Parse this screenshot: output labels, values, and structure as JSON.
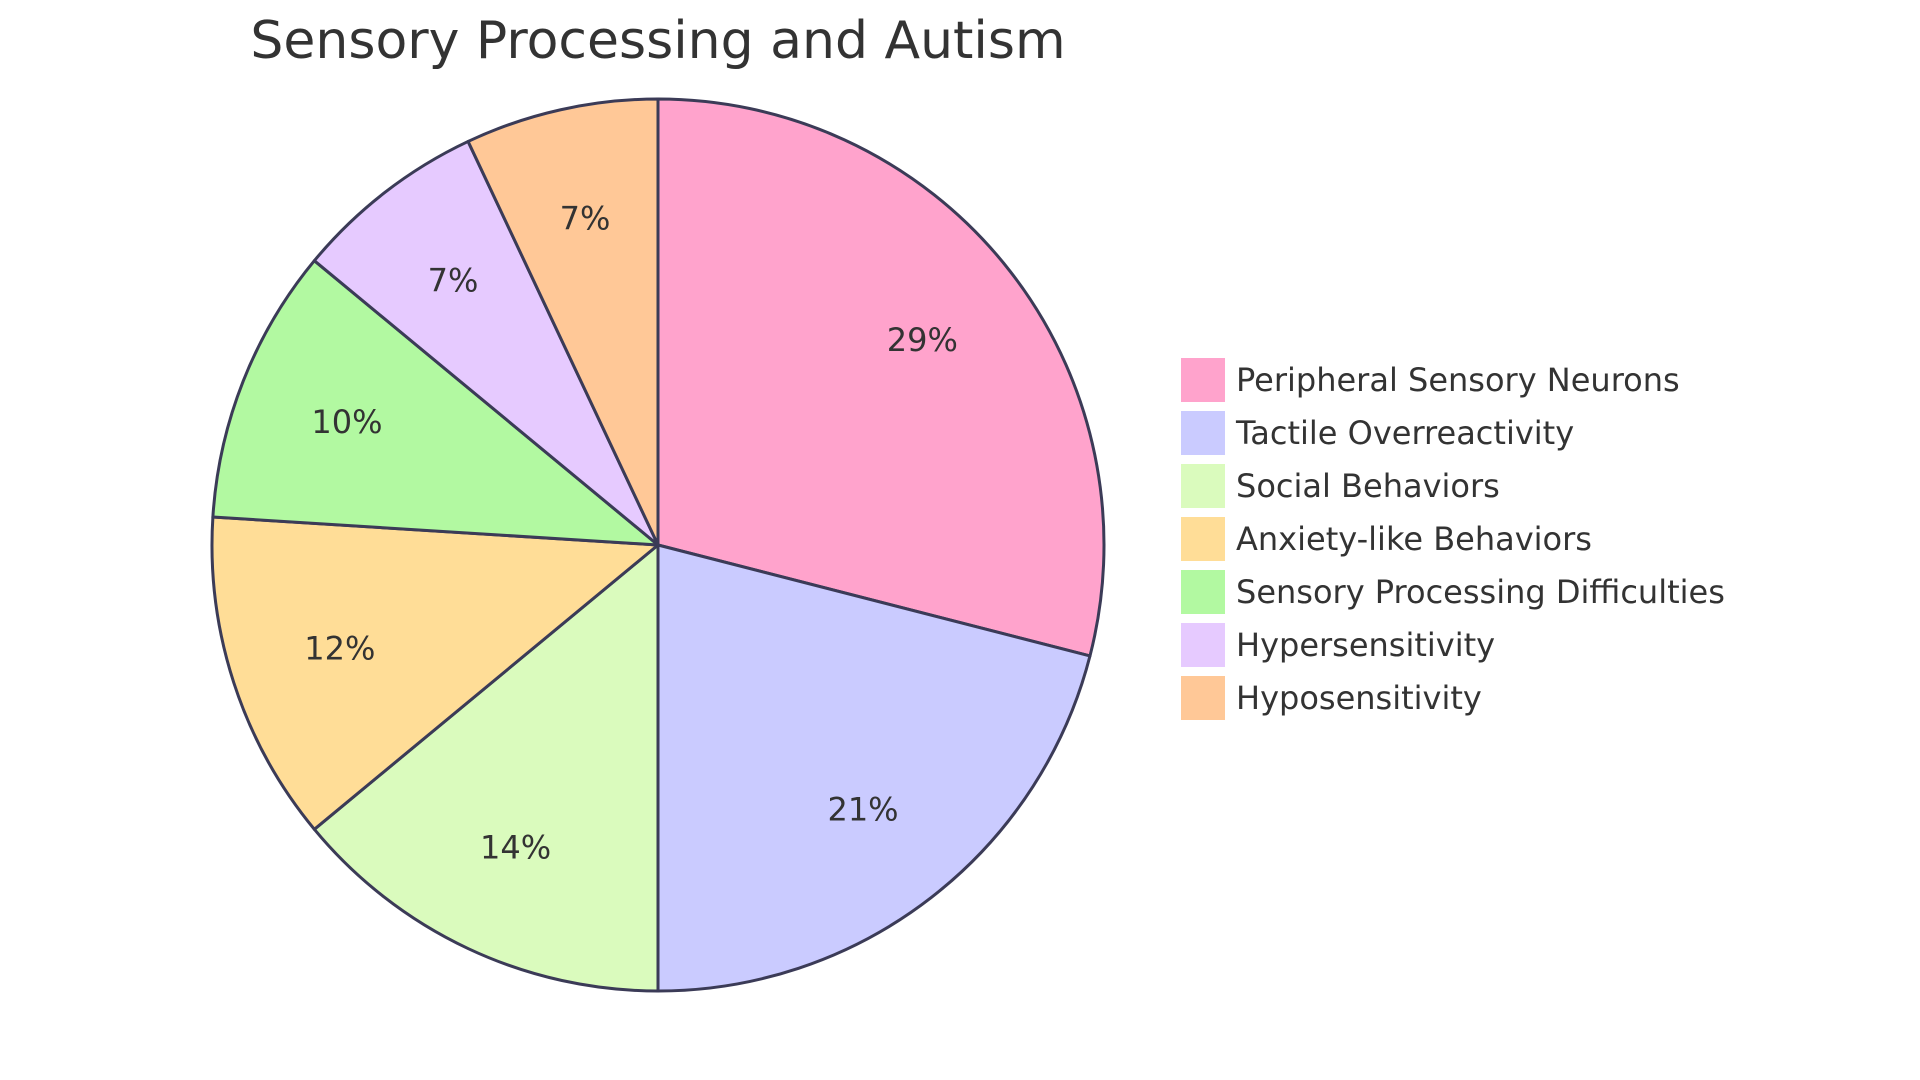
{
  "chart_data": {
    "type": "pie",
    "title": "Sensory Processing and Autism",
    "legend_position": "right",
    "slices": [
      {
        "label": "Peripheral Sensory Neurons",
        "value": 29,
        "display": "29%",
        "color": "#FFA3CC"
      },
      {
        "label": "Tactile Overreactivity",
        "value": 21,
        "display": "21%",
        "color": "#CACBFF"
      },
      {
        "label": "Social Behaviors",
        "value": 14,
        "display": "14%",
        "color": "#DAFBBD"
      },
      {
        "label": "Anxiety-like Behaviors",
        "value": 12,
        "display": "12%",
        "color": "#FFDD97"
      },
      {
        "label": "Sensory Processing Difficulties",
        "value": 10,
        "display": "10%",
        "color": "#B2F9A1"
      },
      {
        "label": "Hypersensitivity",
        "value": 7,
        "display": "7%",
        "color": "#E6CAFF"
      },
      {
        "label": "Hyposensitivity",
        "value": 7,
        "display": "7%",
        "color": "#FFC897"
      }
    ]
  }
}
